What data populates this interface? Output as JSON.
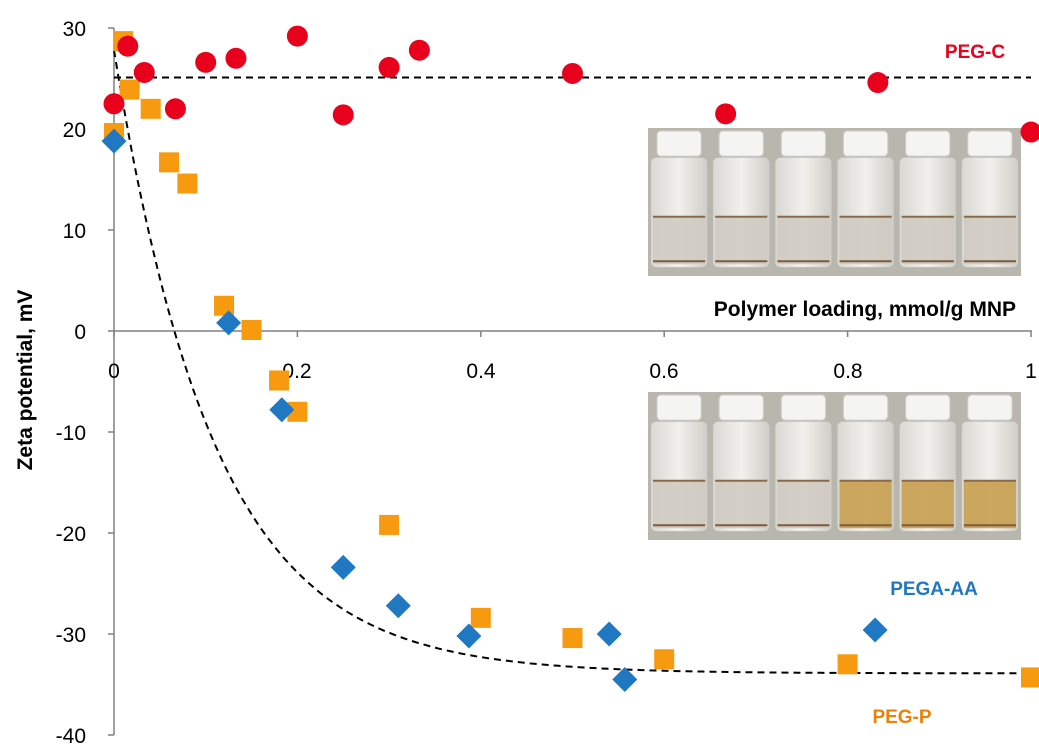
{
  "chart_data": {
    "type": "scatter",
    "xlabel": "Polymer loading, mmol/g MNP",
    "ylabel": "Zeta potential, mV",
    "xlim": [
      0,
      1
    ],
    "ylim": [
      -40,
      30
    ],
    "x_ticks": [
      "0",
      "0.2",
      "0.4",
      "0.6",
      "0.8",
      "1"
    ],
    "y_ticks": [
      "30",
      "20",
      "10",
      "0",
      "-10",
      "-20",
      "-30",
      "-40"
    ],
    "grid": false,
    "series": [
      {
        "name": "PEG-C",
        "color": "#e8001c",
        "marker": "circle",
        "points": [
          [
            0,
            22.5
          ],
          [
            0.015,
            28.2
          ],
          [
            0.033,
            25.6
          ],
          [
            0.067,
            22.0
          ],
          [
            0.1,
            26.6
          ],
          [
            0.133,
            27.0
          ],
          [
            0.2,
            29.2
          ],
          [
            0.25,
            21.4
          ],
          [
            0.3,
            26.1
          ],
          [
            0.333,
            27.8
          ],
          [
            0.5,
            25.5
          ],
          [
            0.667,
            21.5
          ],
          [
            0.833,
            24.6
          ],
          [
            1.0,
            19.7
          ]
        ]
      },
      {
        "name": "PEGA-AA",
        "color": "#1f78c1",
        "marker": "diamond",
        "points": [
          [
            0,
            18.8
          ],
          [
            0.125,
            0.8
          ],
          [
            0.183,
            -7.8
          ],
          [
            0.25,
            -23.4
          ],
          [
            0.31,
            -27.2
          ],
          [
            0.387,
            -30.2
          ],
          [
            0.54,
            -30.0
          ],
          [
            0.557,
            -34.5
          ],
          [
            0.83,
            -29.6
          ]
        ]
      },
      {
        "name": "PEG-P",
        "color": "#f79a0f",
        "marker": "square",
        "points": [
          [
            0,
            19.6
          ],
          [
            0.01,
            28.7
          ],
          [
            0.017,
            23.9
          ],
          [
            0.04,
            22.0
          ],
          [
            0.06,
            16.7
          ],
          [
            0.08,
            14.6
          ],
          [
            0.12,
            2.5
          ],
          [
            0.15,
            0.1
          ],
          [
            0.18,
            -4.9
          ],
          [
            0.2,
            -8.0
          ],
          [
            0.3,
            -19.2
          ],
          [
            0.4,
            -28.4
          ],
          [
            0.5,
            -30.4
          ],
          [
            0.6,
            -32.5
          ],
          [
            0.8,
            -33.0
          ],
          [
            1.0,
            -34.3
          ]
        ]
      }
    ],
    "reference_lines": [
      {
        "style": "dashed",
        "type": "horizontal",
        "y": 25.1,
        "color": "#000000"
      },
      {
        "style": "dashed",
        "type": "exponential-fit",
        "a": 61.7,
        "b": -33.9,
        "k": 9.1,
        "color": "#000000"
      }
    ]
  },
  "insets": [
    {
      "name": "vials-photo-top",
      "description": "photo of six capped glass vials with light tan dispersions"
    },
    {
      "name": "vials-photo-bottom",
      "description": "photo of six capped glass vials, right three with amber dispersions"
    }
  ]
}
